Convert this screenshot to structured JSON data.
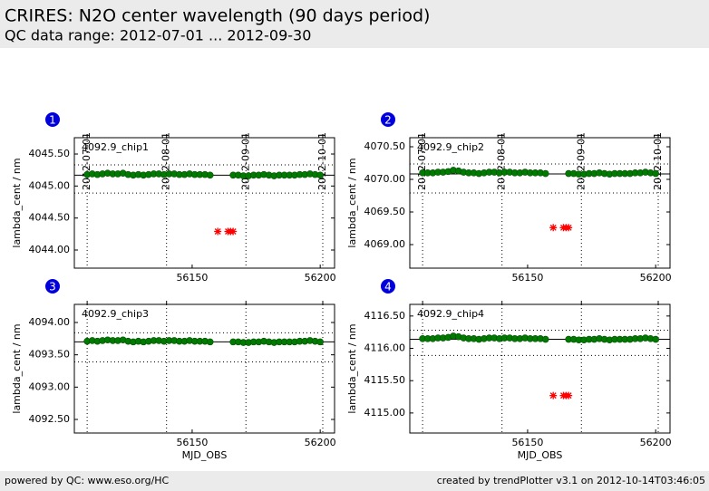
{
  "header": {
    "title": "CRIRES: N2O center wavelength (90 days period)",
    "subtitle": "QC data range: 2012-07-01 ... 2012-09-30"
  },
  "footer": {
    "left": "powered by QC: www.eso.org/HC",
    "right": "created by trendPlotter v3.1 on 2012-10-14T03:46:05"
  },
  "chart_data": [
    {
      "type": "scatter",
      "panel_number": "1",
      "label": "4092.9_chip1",
      "ylabel": "lambda_cent / nm",
      "xlim": [
        56104,
        56205.6
      ],
      "xticks": [
        56150,
        56200
      ],
      "x2ticks": [
        {
          "value": 56109,
          "label": "2012-07-01"
        },
        {
          "value": 56140,
          "label": "2012-08-01"
        },
        {
          "value": 56171,
          "label": "2012-09-01"
        },
        {
          "value": 56201,
          "label": "2012-10-01"
        }
      ],
      "ylim": [
        4043.717,
        4045.755
      ],
      "yticks": [
        {
          "value": 4044,
          "label": "4044.00"
        },
        {
          "value": 4044.5,
          "label": "4044.50"
        },
        {
          "value": 4045,
          "label": "4045.00"
        },
        {
          "value": 4045.5,
          "label": "4045.50"
        }
      ],
      "mean_line": 4045.17,
      "limit_lines": [
        4045.33,
        4044.89
      ],
      "series": [
        {
          "color": "#007a00",
          "marker": "o",
          "x": [
            56109,
            56111,
            56113,
            56115,
            56117,
            56119,
            56121,
            56123,
            56125,
            56127,
            56129,
            56131,
            56133,
            56135,
            56137,
            56139,
            56141,
            56143,
            56145,
            56147,
            56149,
            56151,
            56153,
            56155,
            56157,
            56166,
            56168,
            56170,
            56172,
            56174,
            56176,
            56178,
            56180,
            56182,
            56184,
            56186,
            56188,
            56190,
            56192,
            56194,
            56196,
            56198,
            56200
          ],
          "values": [
            4045.18,
            4045.19,
            4045.18,
            4045.19,
            4045.2,
            4045.19,
            4045.19,
            4045.2,
            4045.18,
            4045.17,
            4045.18,
            4045.17,
            4045.18,
            4045.19,
            4045.19,
            4045.18,
            4045.19,
            4045.19,
            4045.18,
            4045.18,
            4045.19,
            4045.18,
            4045.18,
            4045.18,
            4045.17,
            4045.17,
            4045.17,
            4045.16,
            4045.16,
            4045.17,
            4045.17,
            4045.18,
            4045.17,
            4045.16,
            4045.17,
            4045.17,
            4045.17,
            4045.17,
            4045.18,
            4045.18,
            4045.19,
            4045.18,
            4045.17
          ]
        },
        {
          "color": "#ff0000",
          "marker": "*",
          "x": [
            56160,
            56164,
            56165,
            56166
          ],
          "values": [
            4044.29,
            4044.29,
            4044.29,
            4044.29
          ]
        }
      ]
    },
    {
      "type": "scatter",
      "panel_number": "2",
      "label": "4092.9_chip2",
      "ylabel": "lambda_cent / nm",
      "xlim": [
        56104,
        56205.6
      ],
      "xticks": [
        56150,
        56200
      ],
      "x2ticks": [
        {
          "value": 56109,
          "label": "2012-07-01"
        },
        {
          "value": 56140,
          "label": "2012-08-01"
        },
        {
          "value": 56171,
          "label": "2012-09-01"
        },
        {
          "value": 56201,
          "label": "2012-10-01"
        }
      ],
      "ylim": [
        4068.639,
        4070.639
      ],
      "yticks": [
        {
          "value": 4069,
          "label": "4069.00"
        },
        {
          "value": 4069.5,
          "label": "4069.50"
        },
        {
          "value": 4070,
          "label": "4070.00"
        },
        {
          "value": 4070.5,
          "label": "4070.50"
        }
      ],
      "mean_line": 4070.083,
      "limit_lines": [
        4070.236,
        4069.792
      ],
      "series": [
        {
          "color": "#007a00",
          "marker": "o",
          "x": [
            56109,
            56111,
            56113,
            56115,
            56117,
            56119,
            56121,
            56123,
            56125,
            56127,
            56129,
            56131,
            56133,
            56135,
            56137,
            56139,
            56141,
            56143,
            56145,
            56147,
            56149,
            56151,
            56153,
            56155,
            56157,
            56166,
            56168,
            56170,
            56172,
            56174,
            56176,
            56178,
            56180,
            56182,
            56184,
            56186,
            56188,
            56190,
            56192,
            56194,
            56196,
            56198,
            56200
          ],
          "values": [
            4070.1,
            4070.1,
            4070.1,
            4070.11,
            4070.11,
            4070.12,
            4070.14,
            4070.13,
            4070.11,
            4070.1,
            4070.1,
            4070.09,
            4070.1,
            4070.11,
            4070.11,
            4070.1,
            4070.11,
            4070.11,
            4070.1,
            4070.1,
            4070.11,
            4070.1,
            4070.1,
            4070.1,
            4070.09,
            4070.09,
            4070.09,
            4070.08,
            4070.08,
            4070.09,
            4070.09,
            4070.1,
            4070.09,
            4070.08,
            4070.09,
            4070.09,
            4070.09,
            4070.09,
            4070.1,
            4070.1,
            4070.11,
            4070.1,
            4070.09
          ]
        },
        {
          "color": "#ff0000",
          "marker": "*",
          "x": [
            56160,
            56164,
            56165,
            56166
          ],
          "values": [
            4069.26,
            4069.26,
            4069.26,
            4069.26
          ]
        }
      ]
    },
    {
      "type": "scatter",
      "panel_number": "3",
      "label": "4092.9_chip3",
      "ylabel": "lambda_cent / nm",
      "xlabel": "MJD_OBS",
      "xlim": [
        56104,
        56205.6
      ],
      "xticks": [
        56150,
        56200
      ],
      "vlines": [
        56109,
        56140,
        56171,
        56201
      ],
      "ylim": [
        4092.29,
        4094.28
      ],
      "yticks": [
        {
          "value": 4092.5,
          "label": "4092.50"
        },
        {
          "value": 4093,
          "label": "4093.00"
        },
        {
          "value": 4093.5,
          "label": "4093.50"
        },
        {
          "value": 4094,
          "label": "4094.00"
        }
      ],
      "mean_line": 4093.7,
      "limit_lines": [
        4093.84,
        4093.39
      ],
      "series": [
        {
          "color": "#007a00",
          "marker": "o",
          "x": [
            56109,
            56111,
            56113,
            56115,
            56117,
            56119,
            56121,
            56123,
            56125,
            56127,
            56129,
            56131,
            56133,
            56135,
            56137,
            56139,
            56141,
            56143,
            56145,
            56147,
            56149,
            56151,
            56153,
            56155,
            56157,
            56166,
            56168,
            56170,
            56172,
            56174,
            56176,
            56178,
            56180,
            56182,
            56184,
            56186,
            56188,
            56190,
            56192,
            56194,
            56196,
            56198,
            56200
          ],
          "values": [
            4093.71,
            4093.72,
            4093.71,
            4093.72,
            4093.73,
            4093.72,
            4093.72,
            4093.73,
            4093.71,
            4093.7,
            4093.71,
            4093.7,
            4093.71,
            4093.72,
            4093.72,
            4093.71,
            4093.72,
            4093.72,
            4093.71,
            4093.71,
            4093.72,
            4093.71,
            4093.71,
            4093.71,
            4093.7,
            4093.7,
            4093.7,
            4093.69,
            4093.69,
            4093.7,
            4093.7,
            4093.71,
            4093.7,
            4093.69,
            4093.7,
            4093.7,
            4093.7,
            4093.7,
            4093.71,
            4093.71,
            4093.72,
            4093.71,
            4093.7
          ]
        }
      ]
    },
    {
      "type": "scatter",
      "panel_number": "4",
      "label": "4092.9_chip4",
      "ylabel": "lambda_cent / nm",
      "xlabel": "MJD_OBS",
      "xlim": [
        56104,
        56205.6
      ],
      "xticks": [
        56150,
        56200
      ],
      "vlines": [
        56109,
        56140,
        56171,
        56201
      ],
      "ylim": [
        4114.69,
        4116.68
      ],
      "yticks": [
        {
          "value": 4115,
          "label": "4115.00"
        },
        {
          "value": 4115.5,
          "label": "4115.50"
        },
        {
          "value": 4116,
          "label": "4116.00"
        },
        {
          "value": 4116.5,
          "label": "4116.50"
        }
      ],
      "mean_line": 4116.14,
      "limit_lines": [
        4116.28,
        4115.89
      ],
      "series": [
        {
          "color": "#007a00",
          "marker": "o",
          "x": [
            56109,
            56111,
            56113,
            56115,
            56117,
            56119,
            56121,
            56123,
            56125,
            56127,
            56129,
            56131,
            56133,
            56135,
            56137,
            56139,
            56141,
            56143,
            56145,
            56147,
            56149,
            56151,
            56153,
            56155,
            56157,
            56166,
            56168,
            56170,
            56172,
            56174,
            56176,
            56178,
            56180,
            56182,
            56184,
            56186,
            56188,
            56190,
            56192,
            56194,
            56196,
            56198,
            56200
          ],
          "values": [
            4116.15,
            4116.15,
            4116.15,
            4116.16,
            4116.16,
            4116.17,
            4116.19,
            4116.18,
            4116.16,
            4116.15,
            4116.15,
            4116.14,
            4116.15,
            4116.16,
            4116.16,
            4116.15,
            4116.16,
            4116.16,
            4116.15,
            4116.15,
            4116.16,
            4116.15,
            4116.15,
            4116.15,
            4116.14,
            4116.14,
            4116.14,
            4116.13,
            4116.13,
            4116.14,
            4116.14,
            4116.15,
            4116.14,
            4116.13,
            4116.14,
            4116.14,
            4116.14,
            4116.14,
            4116.15,
            4116.15,
            4116.16,
            4116.15,
            4116.14
          ]
        },
        {
          "color": "#ff0000",
          "marker": "*",
          "x": [
            56160,
            56164,
            56165,
            56166
          ],
          "values": [
            4115.27,
            4115.27,
            4115.27,
            4115.27
          ]
        }
      ]
    }
  ]
}
